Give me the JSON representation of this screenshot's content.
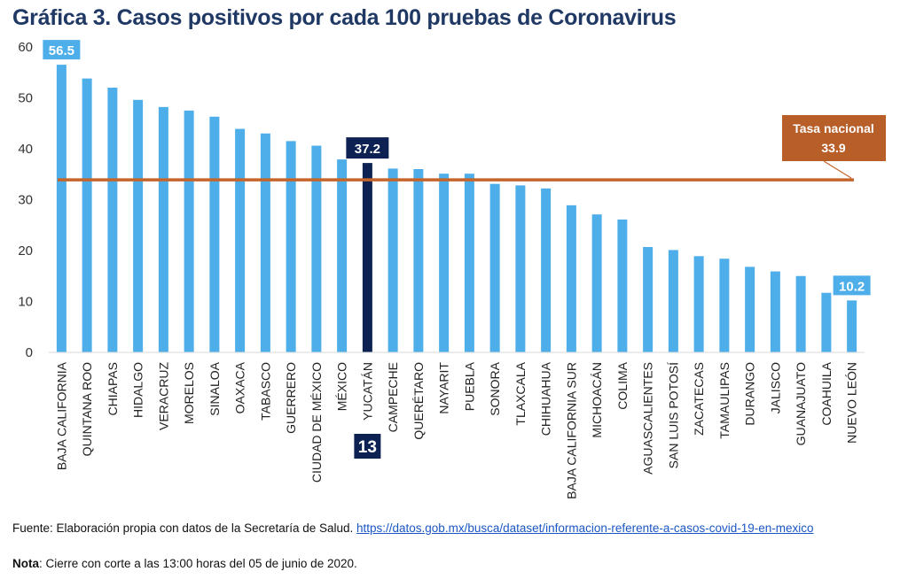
{
  "chart_data": {
    "type": "bar",
    "title": "Gráfica 3. Casos positivos por cada 100 pruebas de Coronavirus",
    "xlabel": "",
    "ylabel": "",
    "ylim": [
      0,
      60
    ],
    "yticks": [
      0,
      10,
      20,
      30,
      40,
      50,
      60
    ],
    "grid": false,
    "categories": [
      "BAJA CALIFORNIA",
      "QUINTANA ROO",
      "CHIAPAS",
      "HIDALGO",
      "VERACRUZ",
      "MORELOS",
      "SINALOA",
      "OAXACA",
      "TABASCO",
      "GUERRERO",
      "CIUDAD DE MÉXICO",
      "MÉXICO",
      "YUCATÁN",
      "CAMPECHE",
      "QUERÉTARO",
      "NAYARIT",
      "PUEBLA",
      "SONORA",
      "TLAXCALA",
      "CHIHUAHUA",
      "BAJA CALIFORNIA SUR",
      "MICHOACÁN",
      "COLIMA",
      "AGUASCALIENTES",
      "SAN LUIS POTOSÍ",
      "ZACATECAS",
      "TAMAULIPAS",
      "DURANGO",
      "JALISCO",
      "GUANAJUATO",
      "COAHUILA",
      "NUEVO LEÓN"
    ],
    "values": [
      56.5,
      53.8,
      52.0,
      49.6,
      48.2,
      47.5,
      46.3,
      43.9,
      43.0,
      41.5,
      40.6,
      37.9,
      37.2,
      36.1,
      36.0,
      35.1,
      35.1,
      33.1,
      32.8,
      32.2,
      28.9,
      27.1,
      26.1,
      20.7,
      20.1,
      18.9,
      18.4,
      16.8,
      15.9,
      15.0,
      11.7,
      10.2
    ],
    "series_color": "#4daeea",
    "highlight": {
      "category": "YUCATÁN",
      "color": "#0d2252",
      "label": "37.2",
      "rank_label": "13"
    },
    "data_labels": [
      {
        "category": "BAJA CALIFORNIA",
        "text": "56.5"
      },
      {
        "category": "NUEVO LEÓN",
        "text": "10.2"
      }
    ],
    "reference_line": {
      "value": 33.9,
      "label_line1": "Tasa nacional",
      "label_line2": "33.9",
      "color": "#c5652b",
      "label_color": "#b85e29"
    }
  },
  "footer": {
    "source_prefix": "Fuente: Elaboración propia con datos de la Secretaría de Salud. ",
    "source_link": "https://datos.gob.mx/busca/dataset/informacion-referente-a-casos-covid-19-en-mexico",
    "note_label": "Nota",
    "note_text": ": Cierre con corte a las 13:00 horas del 05 de junio de 2020."
  }
}
